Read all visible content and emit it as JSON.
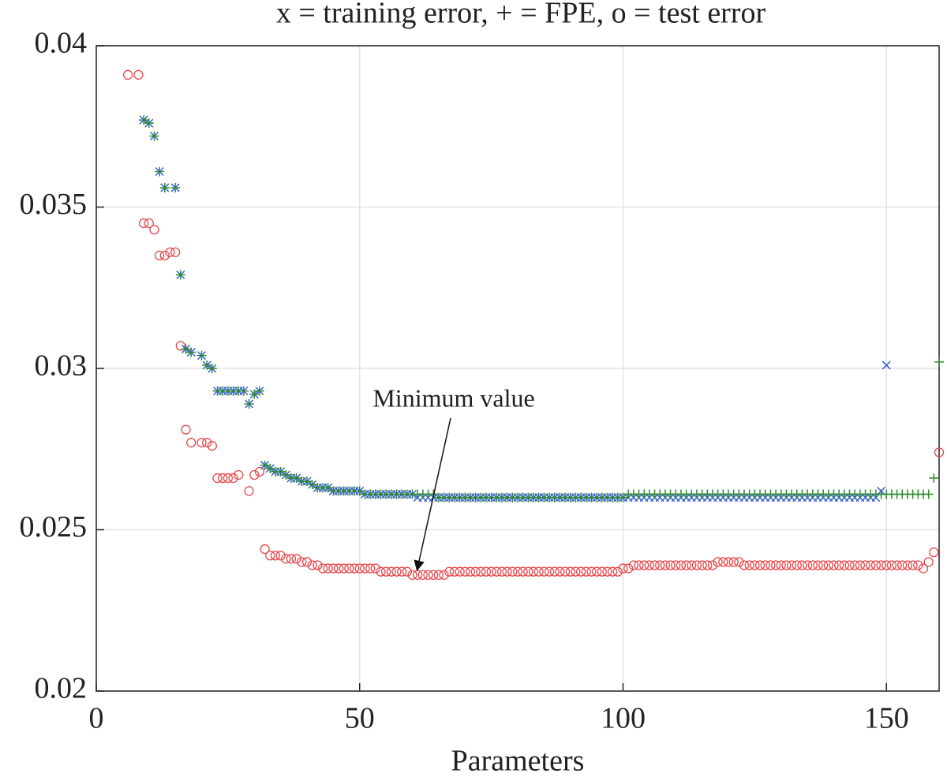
{
  "chart_data": {
    "type": "scatter",
    "title": "x = training error,   + = FPE,   o = test error",
    "xlabel": "Parameters",
    "annotation": "Minimum value",
    "xlim": [
      0,
      160
    ],
    "xticks": [
      0,
      50,
      100,
      150
    ],
    "ylim": [
      0.02,
      0.04
    ],
    "yticks": [
      0.02,
      0.025,
      0.03,
      0.035,
      0.04
    ],
    "grid": true,
    "x": [
      6,
      7,
      8,
      9,
      10,
      11,
      12,
      13,
      14,
      15,
      16,
      17,
      18,
      19,
      20,
      21,
      22,
      23,
      24,
      25,
      26,
      27,
      28,
      29,
      30,
      31,
      32,
      33,
      34,
      35,
      36,
      37,
      38,
      39,
      40,
      41,
      42,
      43,
      44,
      45,
      46,
      47,
      48,
      49,
      50,
      51,
      52,
      53,
      54,
      55,
      56,
      57,
      58,
      59,
      60,
      61,
      62,
      63,
      64,
      65,
      66,
      67,
      68,
      69,
      70,
      71,
      72,
      73,
      74,
      75,
      76,
      77,
      78,
      79,
      80,
      81,
      82,
      83,
      84,
      85,
      86,
      87,
      88,
      89,
      90,
      91,
      92,
      93,
      94,
      95,
      96,
      97,
      98,
      99,
      100,
      101,
      102,
      103,
      104,
      105,
      106,
      107,
      108,
      109,
      110,
      111,
      112,
      113,
      114,
      115,
      116,
      117,
      118,
      119,
      120,
      121,
      122,
      123,
      124,
      125,
      126,
      127,
      128,
      129,
      130,
      131,
      132,
      133,
      134,
      135,
      136,
      137,
      138,
      139,
      140,
      141,
      142,
      143,
      144,
      145,
      146,
      147,
      148,
      149,
      150,
      151,
      152,
      153,
      154,
      155,
      156,
      157,
      158,
      159,
      160
    ],
    "series": [
      {
        "name": "test error",
        "marker": "o",
        "color": "#e8474b",
        "values": [
          0.0391,
          null,
          0.0391,
          0.0345,
          0.0345,
          0.0343,
          0.0335,
          0.0335,
          0.0336,
          0.0336,
          0.0307,
          0.0281,
          0.0277,
          null,
          0.0277,
          0.0277,
          0.0276,
          0.0266,
          0.0266,
          0.0266,
          0.0266,
          0.0267,
          null,
          0.0262,
          0.0267,
          0.0268,
          0.0244,
          0.0242,
          0.0242,
          0.0242,
          0.0241,
          0.0241,
          0.0241,
          0.024,
          0.024,
          0.0239,
          0.0239,
          0.0238,
          0.0238,
          0.0238,
          0.0238,
          0.0238,
          0.0238,
          0.0238,
          0.0238,
          0.0238,
          0.0238,
          0.0238,
          0.0237,
          0.0237,
          0.0237,
          0.0237,
          0.0237,
          0.0237,
          0.0236,
          0.0236,
          0.0236,
          0.0236,
          0.0236,
          0.0236,
          0.0236,
          0.0237,
          0.0237,
          0.0237,
          0.0237,
          0.0237,
          0.0237,
          0.0237,
          0.0237,
          0.0237,
          0.0237,
          0.0237,
          0.0237,
          0.0237,
          0.0237,
          0.0237,
          0.0237,
          0.0237,
          0.0237,
          0.0237,
          0.0237,
          0.0237,
          0.0237,
          0.0237,
          0.0237,
          0.0237,
          0.0237,
          0.0237,
          0.0237,
          0.0237,
          0.0237,
          0.0237,
          0.0237,
          0.0237,
          0.0238,
          0.0238,
          0.0239,
          0.0239,
          0.0239,
          0.0239,
          0.0239,
          0.0239,
          0.0239,
          0.0239,
          0.0239,
          0.0239,
          0.0239,
          0.0239,
          0.0239,
          0.0239,
          0.0239,
          0.0239,
          0.024,
          0.024,
          0.024,
          0.024,
          0.024,
          0.0239,
          0.0239,
          0.0239,
          0.0239,
          0.0239,
          0.0239,
          0.0239,
          0.0239,
          0.0239,
          0.0239,
          0.0239,
          0.0239,
          0.0239,
          0.0239,
          0.0239,
          0.0239,
          0.0239,
          0.0239,
          0.0239,
          0.0239,
          0.0239,
          0.0239,
          0.0239,
          0.0239,
          0.0239,
          0.0239,
          0.0239,
          0.0239,
          0.0239,
          0.0239,
          0.0239,
          0.0239,
          0.0239,
          0.0239,
          0.0238,
          0.024,
          0.0243,
          0.0274
        ]
      },
      {
        "name": "training error",
        "marker": "x",
        "color": "#3a5fd8",
        "values": [
          null,
          null,
          null,
          0.0377,
          0.0376,
          0.0372,
          0.0361,
          0.0356,
          null,
          0.0356,
          0.0329,
          0.0306,
          0.0305,
          null,
          0.0304,
          0.0301,
          0.03,
          0.0293,
          0.0293,
          0.0293,
          0.0293,
          0.0293,
          0.0293,
          0.0289,
          0.0292,
          0.0293,
          0.027,
          0.0269,
          0.0268,
          0.0268,
          0.0267,
          0.0266,
          0.0266,
          0.0265,
          0.0265,
          0.0264,
          0.0263,
          0.0263,
          0.0263,
          0.0262,
          0.0262,
          0.0262,
          0.0262,
          0.0262,
          0.0262,
          0.0261,
          0.0261,
          0.0261,
          0.0261,
          0.0261,
          0.0261,
          0.0261,
          0.0261,
          0.0261,
          0.0261,
          0.026,
          0.026,
          0.026,
          0.026,
          0.026,
          0.026,
          0.026,
          0.026,
          0.026,
          0.026,
          0.026,
          0.026,
          0.026,
          0.026,
          0.026,
          0.026,
          0.026,
          0.026,
          0.026,
          0.026,
          0.026,
          0.026,
          0.026,
          0.026,
          0.026,
          0.026,
          0.026,
          0.026,
          0.026,
          0.026,
          0.026,
          0.026,
          0.026,
          0.026,
          0.026,
          0.026,
          0.026,
          0.026,
          0.026,
          0.026,
          0.026,
          0.026,
          0.026,
          0.026,
          0.026,
          0.026,
          0.026,
          0.026,
          0.026,
          0.026,
          0.026,
          0.026,
          0.026,
          0.026,
          0.026,
          0.026,
          0.026,
          0.026,
          0.026,
          0.026,
          0.026,
          0.026,
          0.026,
          0.026,
          0.026,
          0.026,
          0.026,
          0.026,
          0.026,
          0.026,
          0.026,
          0.026,
          0.026,
          0.026,
          0.026,
          0.026,
          0.026,
          0.026,
          0.026,
          0.026,
          0.026,
          0.026,
          0.026,
          0.026,
          0.026,
          0.026,
          0.026,
          0.026,
          0.0262,
          0.0301
        ]
      },
      {
        "name": "FPE",
        "marker": "+",
        "color": "#2e8b2e",
        "values": [
          null,
          null,
          null,
          0.0377,
          0.0376,
          0.0372,
          0.0361,
          0.0356,
          null,
          0.0356,
          0.0329,
          0.0306,
          0.0305,
          null,
          0.0304,
          0.0301,
          0.03,
          0.0293,
          0.0293,
          0.0293,
          0.0293,
          0.0293,
          0.0293,
          0.0289,
          0.0292,
          0.0293,
          0.027,
          0.0269,
          0.0268,
          0.0268,
          0.0267,
          0.0266,
          0.0266,
          0.0265,
          0.0265,
          0.0264,
          0.0263,
          0.0263,
          0.0263,
          0.0262,
          0.0262,
          0.0262,
          0.0262,
          0.0262,
          0.0262,
          0.0261,
          0.0261,
          0.0261,
          0.0261,
          0.0261,
          0.0261,
          0.0261,
          0.0261,
          0.0261,
          0.0261,
          0.0261,
          0.0261,
          0.0261,
          0.0261,
          0.026,
          0.026,
          0.026,
          0.026,
          0.026,
          0.026,
          0.026,
          0.026,
          0.026,
          0.026,
          0.026,
          0.026,
          0.026,
          0.026,
          0.026,
          0.026,
          0.026,
          0.026,
          0.026,
          0.026,
          0.026,
          0.026,
          0.026,
          0.026,
          0.026,
          0.026,
          0.026,
          0.026,
          0.026,
          0.026,
          0.026,
          0.026,
          0.026,
          0.026,
          0.026,
          0.026,
          0.0261,
          0.0261,
          0.0261,
          0.0261,
          0.0261,
          0.0261,
          0.0261,
          0.0261,
          0.0261,
          0.0261,
          0.0261,
          0.0261,
          0.0261,
          0.0261,
          0.0261,
          0.0261,
          0.0261,
          0.0261,
          0.0261,
          0.0261,
          0.0261,
          0.0261,
          0.0261,
          0.0261,
          0.0261,
          0.0261,
          0.0261,
          0.0261,
          0.0261,
          0.0261,
          0.0261,
          0.0261,
          0.0261,
          0.0261,
          0.0261,
          0.0261,
          0.0261,
          0.0261,
          0.0261,
          0.0261,
          0.0261,
          0.0261,
          0.0261,
          0.0261,
          0.0261,
          0.0261,
          0.0261,
          0.0261,
          0.0261,
          0.0261,
          0.0261,
          0.0261,
          0.0261,
          0.0261,
          0.0261,
          0.0261,
          0.0261,
          0.0261,
          0.0266,
          0.0302
        ]
      }
    ]
  }
}
